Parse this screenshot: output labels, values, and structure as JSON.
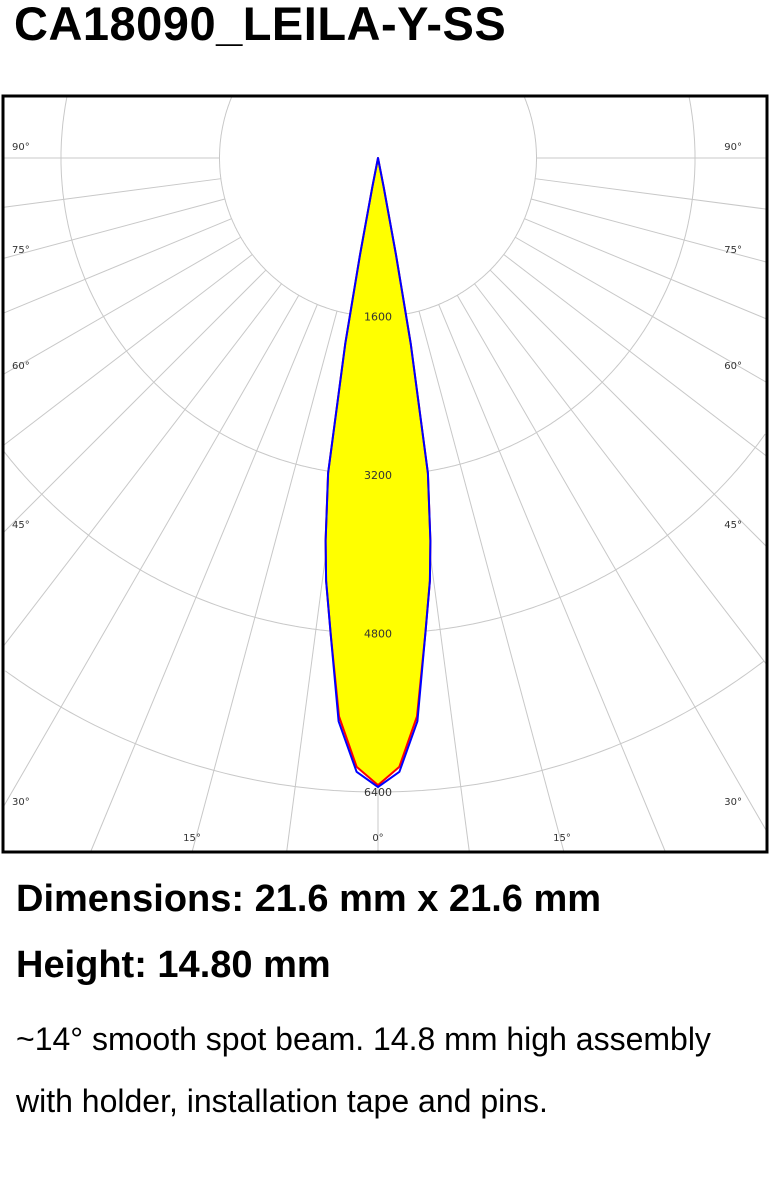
{
  "title": "CA18090_LEILA-Y-SS",
  "chart_data": {
    "type": "polar",
    "ring_values": [
      1600,
      3200,
      4800,
      6400
    ],
    "ring_labels": [
      "1600",
      "3200",
      "4800",
      "6400"
    ],
    "rmax": 6400,
    "angle_labels_left": [
      "90°",
      "75°",
      "60°",
      "45°",
      "30°",
      "15°"
    ],
    "angle_labels_right": [
      "90°",
      "75°",
      "60°",
      "45°",
      "30°",
      "15°"
    ],
    "angle_label_center": "0°",
    "grid": true,
    "fill_color": "#ffff00",
    "series": [
      {
        "color": "#ff0000",
        "angles": [
          0,
          2,
          4,
          5.7,
          7,
          7.8,
          9,
          10,
          10.5,
          11,
          12
        ],
        "values": [
          6330,
          6150,
          5650,
          4820,
          4300,
          3900,
          3220,
          1900,
          1000,
          300,
          0
        ]
      },
      {
        "color": "#0000ff",
        "angles": [
          0,
          2,
          4,
          5.7,
          7,
          7.8,
          9,
          10,
          10.5,
          11,
          12
        ],
        "values": [
          6350,
          6200,
          5700,
          4820,
          4300,
          3900,
          3220,
          1900,
          1000,
          300,
          0
        ]
      }
    ]
  },
  "dimensions": "Dimensions: 21.6 mm x 21.6 mm",
  "height": "Height: 14.80 mm",
  "description": "~14° smooth spot beam. 14.8 mm high assembly with holder, installation tape and pins."
}
